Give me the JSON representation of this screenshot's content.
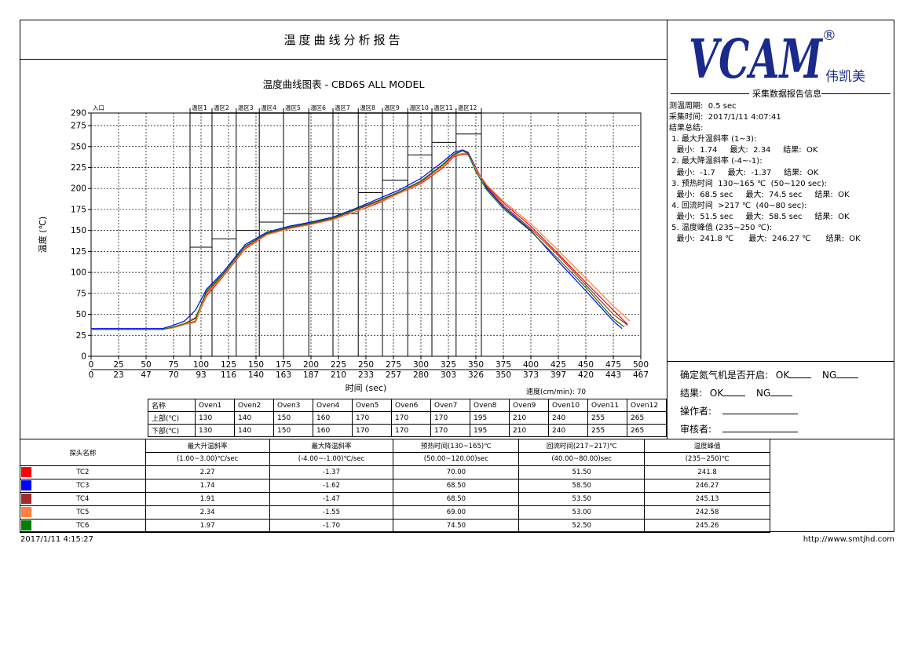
{
  "report": {
    "title": "温度曲线分析报告",
    "chart_title": "温度曲线图表 - CBD6S ALL MODEL",
    "footer_date": "2017/1/11 4:15:27",
    "footer_url": "http://www.smtjhd.com"
  },
  "logo": {
    "text": "VCAM",
    "registered": "®",
    "cn": "伟凯美",
    "color": "#1a2a8c"
  },
  "info": {
    "title": "采集数据报告信息",
    "lines": [
      "测温周期:  0.5 sec",
      "采集时间:  2017/1/11 4:07:41",
      "结果总结:",
      " 1. 最大升温斜率 (1~3):",
      "   最小:  1.74     最大:  2.34     结果:  OK",
      " 2. 最大降温斜率 (-4~-1):",
      "   最小:  -1.7     最大:  -1.37     结果:  OK",
      " 3. 预热时间  130~165 ℃  (50~120 sec):",
      "   最小:  68.5 sec     最大:  74.5 sec     结果:  OK",
      " 4. 回流时间  >217 ℃  (40~80 sec):",
      "   最小:  51.5 sec     最大:  58.5 sec     结果:  OK",
      " 5. 温度峰值 (235~250 ℃):",
      "   最小:  241.8 ℃      最大:  246.27 ℃      结果:  OK"
    ]
  },
  "check": {
    "nitrogen_label": "确定氮气机是否开启:",
    "result_label": "结果:",
    "ok": "OK",
    "ng": "NG",
    "operator_label": "操作者:",
    "reviewer_label": "审核者:"
  },
  "speed_label": "速度(cm/min):  70",
  "oven_table": {
    "row_labels": [
      "名称",
      "上部(℃)",
      "下部(℃)"
    ],
    "ovens": [
      "Oven1",
      "Oven2",
      "Oven3",
      "Oven4",
      "Oven5",
      "Oven6",
      "Oven7",
      "Oven8",
      "Oven9",
      "Oven10",
      "Oven11",
      "Oven12"
    ],
    "upper": [
      "130",
      "140",
      "150",
      "160",
      "170",
      "170",
      "170",
      "195",
      "210",
      "240",
      "255",
      "265"
    ],
    "lower": [
      "130",
      "140",
      "150",
      "160",
      "170",
      "170",
      "170",
      "195",
      "210",
      "240",
      "255",
      "265"
    ]
  },
  "results_table": {
    "probe_header": "探头名称",
    "headers": [
      "最大升温斜率",
      "最大降温斜率",
      "预热时间(130~165)℃",
      "回流时间(217~217)℃",
      "温度峰值"
    ],
    "subheaders": [
      "(1.00~3.00)℃/sec",
      "(-4.00~-1.00)℃/sec",
      "(50.00~120.00)sec",
      "(40.00~80.00)sec",
      "(235~250)℃"
    ],
    "rows": [
      {
        "probe": "TC2",
        "color": "#ff0000",
        "values": [
          "2.27",
          "-1.37",
          "70.00",
          "51.50",
          "241.8"
        ]
      },
      {
        "probe": "TC3",
        "color": "#0000ff",
        "values": [
          "1.74",
          "-1.62",
          "68.50",
          "58.50",
          "246.27"
        ]
      },
      {
        "probe": "TC4",
        "color": "#a52a2a",
        "values": [
          "1.91",
          "-1.47",
          "68.50",
          "53.50",
          "245.13"
        ]
      },
      {
        "probe": "TC5",
        "color": "#ff8040",
        "values": [
          "2.34",
          "-1.55",
          "69.00",
          "53.00",
          "242.58"
        ]
      },
      {
        "probe": "TC6",
        "color": "#008000",
        "values": [
          "1.97",
          "-1.70",
          "74.50",
          "52.50",
          "245.26"
        ]
      }
    ]
  },
  "chart_data": {
    "type": "line",
    "ylabel": "温度 (℃)",
    "xlabel": "时间 (sec)",
    "ylim": [
      0,
      290
    ],
    "xlim": [
      0,
      500
    ],
    "y_ticks": [
      0,
      25,
      50,
      75,
      100,
      125,
      150,
      175,
      200,
      225,
      250,
      275,
      290
    ],
    "x_ticks": [
      0,
      25,
      50,
      75,
      100,
      125,
      150,
      175,
      200,
      225,
      250,
      275,
      300,
      325,
      350,
      375,
      400,
      425,
      450,
      475,
      500
    ],
    "x_ticks_2": [
      "0",
      "23",
      "47",
      "70",
      "93",
      "116",
      "140",
      "163",
      "187",
      "210",
      "233",
      "257",
      "280",
      "303",
      "326",
      "350",
      "373",
      "397",
      "420",
      "443",
      "467"
    ],
    "grid": true,
    "zones": [
      {
        "label": "入口",
        "start": 0,
        "end": 90,
        "setpoint": null
      },
      {
        "label": "温区1",
        "start": 90,
        "end": 110,
        "setpoint": 130
      },
      {
        "label": "温区2",
        "start": 110,
        "end": 132,
        "setpoint": 140
      },
      {
        "label": "温区3",
        "start": 132,
        "end": 153,
        "setpoint": 150
      },
      {
        "label": "温区4",
        "start": 153,
        "end": 175,
        "setpoint": 160
      },
      {
        "label": "温区5",
        "start": 175,
        "end": 198,
        "setpoint": 170
      },
      {
        "label": "温区6",
        "start": 198,
        "end": 220,
        "setpoint": 170
      },
      {
        "label": "温区7",
        "start": 220,
        "end": 243,
        "setpoint": 170
      },
      {
        "label": "温区8",
        "start": 243,
        "end": 265,
        "setpoint": 195
      },
      {
        "label": "温区9",
        "start": 265,
        "end": 288,
        "setpoint": 210
      },
      {
        "label": "温区10",
        "start": 288,
        "end": 310,
        "setpoint": 240
      },
      {
        "label": "温区11",
        "start": 310,
        "end": 332,
        "setpoint": 255
      },
      {
        "label": "温区12",
        "start": 332,
        "end": 355,
        "setpoint": 265
      }
    ],
    "series": [
      {
        "name": "TC2",
        "color": "#ff0000",
        "x": [
          0,
          65,
          75,
          85,
          95,
          105,
          120,
          140,
          160,
          180,
          200,
          220,
          240,
          260,
          280,
          300,
          310,
          320,
          330,
          338,
          343,
          350,
          360,
          375,
          400,
          425,
          450,
          475,
          488
        ],
        "y": [
          32,
          32,
          34,
          38,
          42,
          72,
          95,
          128,
          145,
          152,
          158,
          163,
          172,
          182,
          194,
          206,
          215,
          225,
          238,
          241,
          240,
          222,
          203,
          183,
          155,
          122,
          88,
          55,
          38
        ]
      },
      {
        "name": "TC3",
        "color": "#0000ff",
        "x": [
          0,
          65,
          75,
          85,
          95,
          105,
          120,
          140,
          160,
          180,
          200,
          220,
          240,
          260,
          280,
          300,
          310,
          320,
          330,
          338,
          343,
          350,
          360,
          375,
          400,
          425,
          450,
          475,
          483
        ],
        "y": [
          33,
          33,
          37,
          42,
          55,
          80,
          100,
          133,
          148,
          155,
          160,
          166,
          176,
          187,
          198,
          212,
          222,
          232,
          243,
          246,
          243,
          225,
          200,
          178,
          150,
          113,
          78,
          42,
          33
        ]
      },
      {
        "name": "TC4",
        "color": "#a52a2a",
        "x": [
          0,
          65,
          75,
          85,
          95,
          105,
          120,
          140,
          160,
          180,
          200,
          220,
          240,
          260,
          280,
          300,
          310,
          320,
          330,
          338,
          343,
          350,
          360,
          375,
          400,
          425,
          450,
          475,
          488
        ],
        "y": [
          32,
          32,
          35,
          39,
          46,
          76,
          97,
          130,
          146,
          153,
          158,
          164,
          174,
          184,
          195,
          208,
          218,
          228,
          240,
          245,
          242,
          224,
          202,
          180,
          152,
          120,
          85,
          50,
          37
        ]
      },
      {
        "name": "TC5",
        "color": "#ff8040",
        "x": [
          0,
          65,
          75,
          85,
          95,
          105,
          120,
          140,
          160,
          180,
          200,
          220,
          240,
          260,
          280,
          300,
          310,
          320,
          330,
          338,
          343,
          350,
          360,
          375,
          400,
          425,
          450,
          475,
          490
        ],
        "y": [
          32,
          32,
          34,
          38,
          40,
          74,
          96,
          129,
          145,
          152,
          157,
          163,
          172,
          183,
          194,
          207,
          216,
          226,
          239,
          242,
          241,
          223,
          204,
          185,
          158,
          126,
          93,
          60,
          42
        ]
      },
      {
        "name": "TC6",
        "color": "#008000",
        "x": [
          0,
          65,
          75,
          85,
          95,
          105,
          120,
          140,
          160,
          180,
          200,
          220,
          240,
          260,
          280,
          300,
          310,
          320,
          330,
          338,
          343,
          350,
          360,
          375,
          400,
          425,
          450,
          475,
          485
        ],
        "y": [
          32,
          32,
          35,
          39,
          45,
          78,
          98,
          131,
          147,
          154,
          159,
          165,
          175,
          185,
          196,
          209,
          219,
          229,
          241,
          245,
          241,
          220,
          198,
          176,
          149,
          116,
          82,
          45,
          35
        ]
      }
    ]
  }
}
